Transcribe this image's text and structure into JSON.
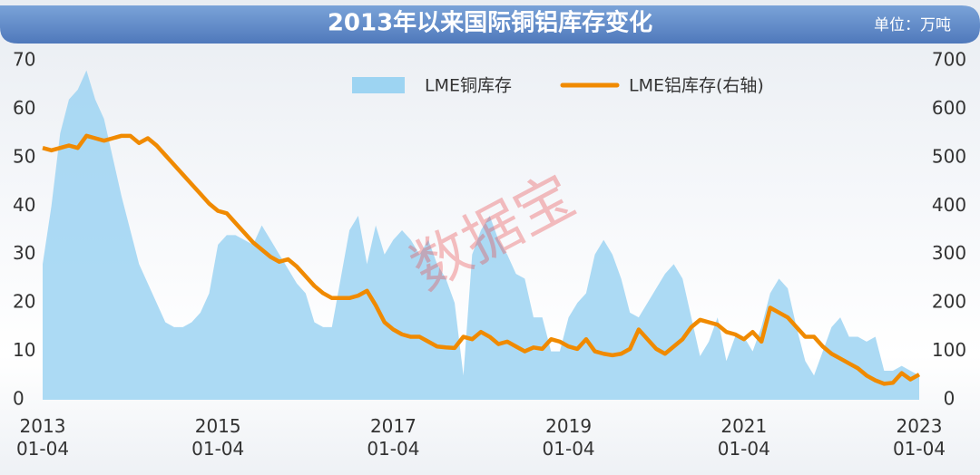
{
  "chart_data": {
    "type": "area-line",
    "title": "2013年以来国际铜铝库存变化",
    "unit": "单位：万吨",
    "watermark": "数据宝",
    "x": [
      2013.0,
      2013.1,
      2013.2,
      2013.3,
      2013.4,
      2013.5,
      2013.6,
      2013.7,
      2013.8,
      2013.9,
      2014.0,
      2014.1,
      2014.2,
      2014.3,
      2014.4,
      2014.5,
      2014.6,
      2014.7,
      2014.8,
      2014.9,
      2015.0,
      2015.1,
      2015.2,
      2015.3,
      2015.4,
      2015.5,
      2015.6,
      2015.7,
      2015.8,
      2015.9,
      2016.0,
      2016.1,
      2016.2,
      2016.3,
      2016.4,
      2016.5,
      2016.6,
      2016.7,
      2016.8,
      2016.9,
      2017.0,
      2017.1,
      2017.2,
      2017.3,
      2017.4,
      2017.5,
      2017.6,
      2017.7,
      2017.8,
      2017.9,
      2018.0,
      2018.1,
      2018.2,
      2018.3,
      2018.4,
      2018.5,
      2018.6,
      2018.7,
      2018.8,
      2018.9,
      2019.0,
      2019.1,
      2019.2,
      2019.3,
      2019.4,
      2019.5,
      2019.6,
      2019.7,
      2019.8,
      2019.9,
      2020.0,
      2020.1,
      2020.2,
      2020.3,
      2020.4,
      2020.5,
      2020.6,
      2020.7,
      2020.8,
      2020.9,
      2021.0,
      2021.1,
      2021.2,
      2021.3,
      2021.4,
      2021.5,
      2021.6,
      2021.7,
      2021.8,
      2021.9,
      2022.0,
      2022.1,
      2022.2,
      2022.3,
      2022.4,
      2022.5,
      2022.6,
      2022.7,
      2022.8,
      2022.9,
      2023.0
    ],
    "series": [
      {
        "name": "LME铜库存",
        "kind": "area",
        "color": "#9dd4f2",
        "axis": "y",
        "values": [
          28,
          40,
          55,
          62,
          64,
          68,
          62,
          58,
          50,
          42,
          35,
          28,
          24,
          20,
          16,
          15,
          15,
          16,
          18,
          22,
          32,
          34,
          34,
          33,
          32,
          36,
          33,
          30,
          27,
          24,
          22,
          16,
          15,
          15,
          25,
          35,
          38,
          28,
          36,
          30,
          33,
          35,
          33,
          30,
          33,
          28,
          25,
          20,
          5,
          30,
          35,
          38,
          33,
          30,
          26,
          25,
          17,
          17,
          10,
          10,
          17,
          20,
          22,
          30,
          33,
          30,
          25,
          18,
          17,
          20,
          23,
          26,
          28,
          25,
          17,
          9,
          12,
          17,
          8,
          13,
          13,
          10,
          15,
          22,
          25,
          23,
          15,
          8,
          5,
          10,
          15,
          17,
          13,
          13,
          12,
          13,
          6,
          6,
          7,
          6,
          5
        ]
      },
      {
        "name": "LME铝库存(右轴)",
        "kind": "line",
        "color": "#f08a00",
        "axis": "y2",
        "values": [
          520,
          515,
          520,
          525,
          520,
          545,
          540,
          535,
          540,
          545,
          545,
          530,
          540,
          525,
          505,
          485,
          465,
          445,
          425,
          405,
          390,
          385,
          365,
          345,
          325,
          310,
          295,
          285,
          290,
          275,
          255,
          235,
          220,
          210,
          210,
          210,
          215,
          225,
          195,
          160,
          145,
          135,
          130,
          130,
          120,
          110,
          108,
          107,
          130,
          125,
          140,
          130,
          115,
          120,
          110,
          100,
          108,
          105,
          125,
          120,
          110,
          105,
          125,
          100,
          95,
          92,
          95,
          105,
          145,
          125,
          105,
          95,
          110,
          125,
          150,
          165,
          160,
          155,
          140,
          135,
          125,
          140,
          120,
          190,
          180,
          170,
          150,
          130,
          130,
          110,
          95,
          85,
          75,
          65,
          50,
          40,
          33,
          35,
          55,
          42,
          52
        ]
      }
    ],
    "xlim": [
      2013,
      2023
    ],
    "xticks": [
      {
        "value": 2013,
        "label": "2013\n01-04"
      },
      {
        "value": 2015,
        "label": "2015\n01-04"
      },
      {
        "value": 2017,
        "label": "2017\n01-04"
      },
      {
        "value": 2019,
        "label": "2019\n01-04"
      },
      {
        "value": 2021,
        "label": "2021\n01-04"
      },
      {
        "value": 2023,
        "label": "2023\n01-04"
      }
    ],
    "ylim": [
      0,
      70
    ],
    "yticks": [
      0,
      10,
      20,
      30,
      40,
      50,
      60,
      70
    ],
    "y2lim": [
      0,
      700
    ],
    "y2ticks": [
      0,
      100,
      200,
      300,
      400,
      500,
      600,
      700
    ],
    "grid": false
  }
}
